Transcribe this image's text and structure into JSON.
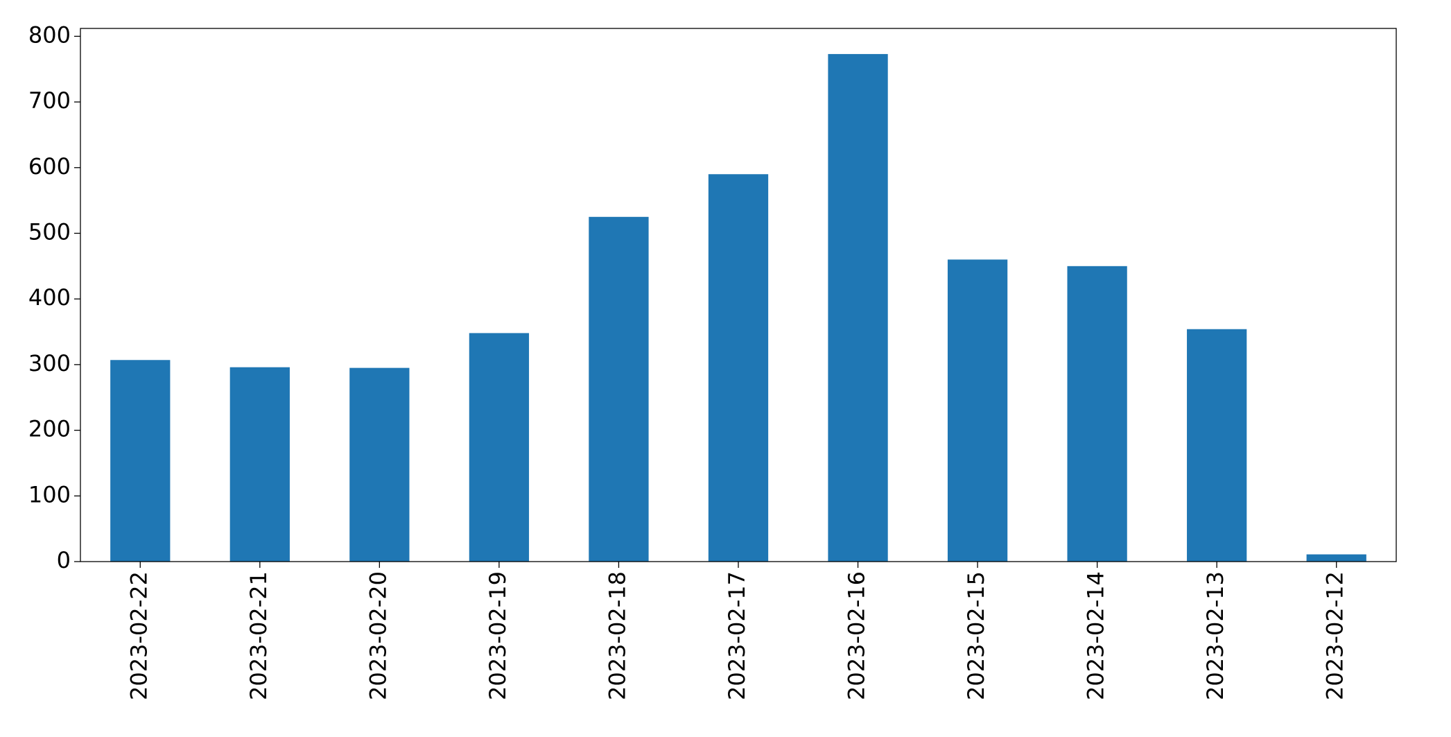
{
  "chart_data": {
    "type": "bar",
    "categories": [
      "2023-02-22",
      "2023-02-21",
      "2023-02-20",
      "2023-02-19",
      "2023-02-18",
      "2023-02-17",
      "2023-02-16",
      "2023-02-15",
      "2023-02-14",
      "2023-02-13",
      "2023-02-12"
    ],
    "values": [
      307,
      296,
      295,
      348,
      525,
      590,
      773,
      460,
      450,
      354,
      11
    ],
    "color": "#1f77b4",
    "ylim": [
      0,
      812
    ],
    "yticks": [
      0,
      100,
      200,
      300,
      400,
      500,
      600,
      700,
      800
    ],
    "grid": false
  }
}
